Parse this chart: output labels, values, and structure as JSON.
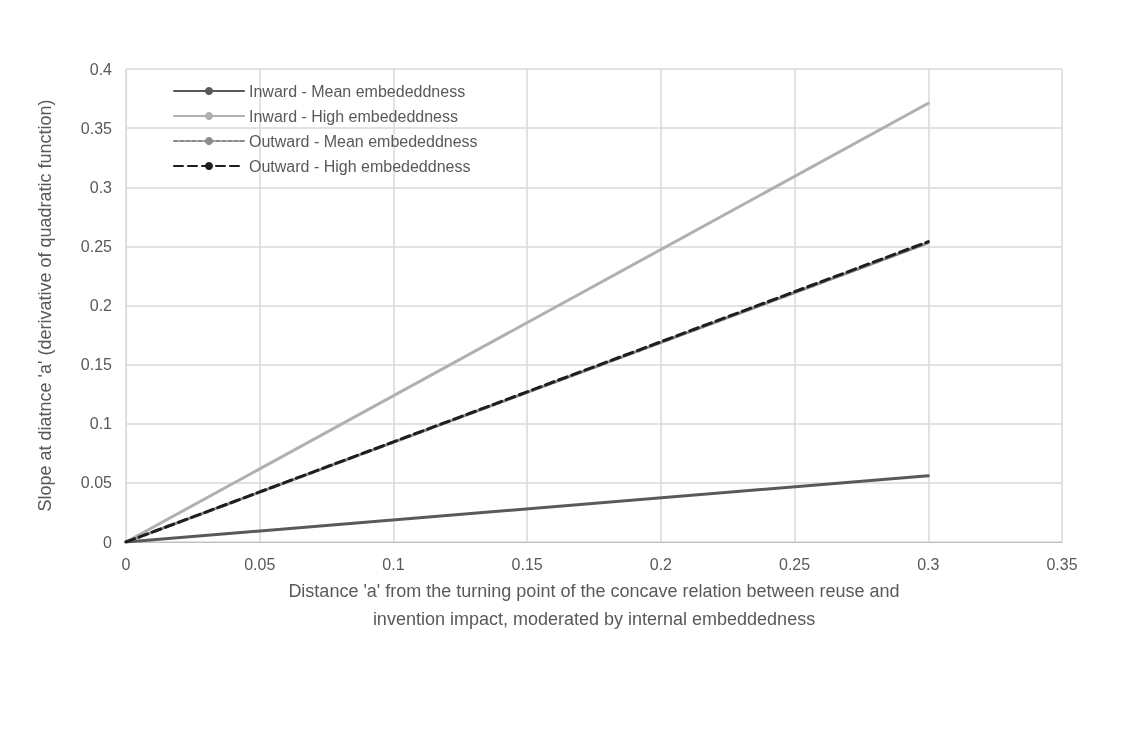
{
  "chart_data": {
    "type": "line",
    "xlabel": "Distance 'a' from the turning point of the concave relation between reuse and\ninvention impact, moderated by internal embeddedness",
    "ylabel": "Slope at diatnce 'a' (derivative of quadratic function)",
    "x": [
      0,
      0.3
    ],
    "series": [
      {
        "name": "Inward - Mean embededdness",
        "color": "#595959",
        "line_style": "solid",
        "values": [
          0,
          0.056
        ]
      },
      {
        "name": "Inward - High embededdness",
        "color": "#b0b0b0",
        "line_style": "solid",
        "values": [
          0,
          0.371
        ]
      },
      {
        "name": "Outward - Mean embededdness",
        "color": "#8c8c8c",
        "line_style": "dotted",
        "values": [
          0,
          0.253
        ]
      },
      {
        "name": "Outward - High embededdness",
        "color": "#1e1e1e",
        "line_style": "dashed",
        "values": [
          0,
          0.254
        ]
      }
    ],
    "xlim": [
      0,
      0.35
    ],
    "xticks": [
      0,
      0.05,
      0.1,
      0.15,
      0.2,
      0.25,
      0.3,
      0.35
    ],
    "ylim": [
      0,
      0.4
    ],
    "yticks": [
      0,
      0.05,
      0.1,
      0.15,
      0.2,
      0.25,
      0.3,
      0.35,
      0.4
    ],
    "grid": true,
    "legend": "top left",
    "marker": "none"
  }
}
